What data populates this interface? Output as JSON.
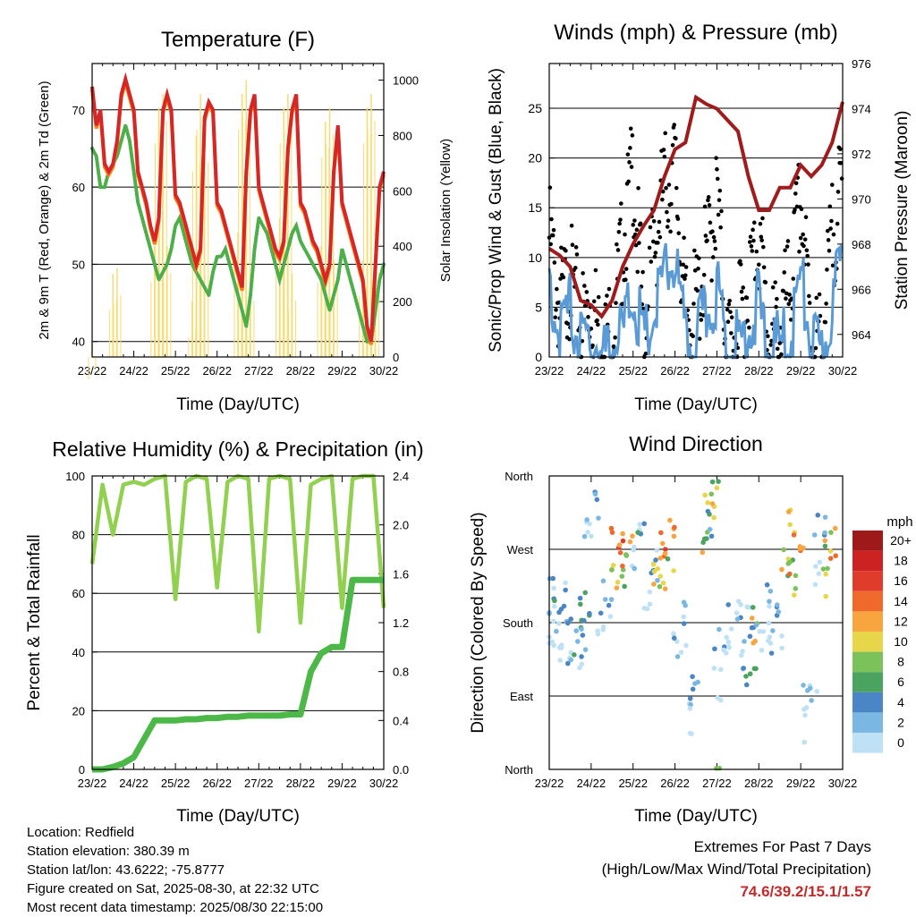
{
  "panels": {
    "temperature": {
      "title": "Temperature (F)",
      "ylabel": "2m & 9m T (Red, Orange) & 2m Td (Green)",
      "y2label": "Solar Insolation (Yellow)",
      "xlabel": "Time (Day/UTC)"
    },
    "winds": {
      "title": "Winds (mph) & Pressure (mb)",
      "ylabel": "Sonic/Prop Wind & Gust (Blue, Black)",
      "y2label": "Station Pressure (Maroon)",
      "xlabel": "Time (Day/UTC)"
    },
    "humidity": {
      "title": "Relative Humidity (%) & Precipitation (in)",
      "ylabel": "Percent & Total Rainfall",
      "xlabel": "Time (Day/UTC)"
    },
    "direction": {
      "title": "Wind Direction",
      "ylabel": "Direction (Colored By Speed)",
      "xlabel": "Time (Day/UTC)",
      "legend_title": "mph"
    }
  },
  "station": {
    "location": "Location: Redfield",
    "elevation": "Station elevation: 380.39 m",
    "latlon": "Station lat/lon: 43.6222; -75.8777",
    "created": "Figure created on Sat, 2025-08-30, at 22:32 UTC",
    "recent": "Most recent data timestamp: 2025/08/30 22:15:00"
  },
  "extremes": {
    "line1": "Extremes For Past 7 Days",
    "line2": "(High/Low/Max Wind/Total Precipitation)",
    "values": "74.6/39.2/15.1/1.57"
  },
  "colors": {
    "temp2m": "#d62728",
    "temp9m": "#ff7f0e",
    "dewpoint": "#4daf4a",
    "solar": "#f7dc6f",
    "wind": "#5b9bd5",
    "gust": "#000000",
    "pressure": "#a01c1c",
    "rh": "#92d050",
    "precip": "#4cb848"
  },
  "chart_data": [
    {
      "type": "line",
      "title": "Temperature (F)",
      "xlabel": "Time (Day/UTC)",
      "ylabel": "2m & 9m T (Red, Orange) & 2m Td (Green)",
      "y2label": "Solar Insolation (Yellow)",
      "xticks": [
        "23/22",
        "24/22",
        "25/22",
        "26/22",
        "27/22",
        "28/22",
        "29/22",
        "30/22"
      ],
      "ylim": [
        38,
        76
      ],
      "yticks": [
        40,
        50,
        60,
        70
      ],
      "y2lim": [
        0,
        1060
      ],
      "y2ticks": [
        0,
        200,
        400,
        600,
        800,
        1000
      ],
      "grid": true,
      "x": [
        0,
        0.1,
        0.2,
        0.3,
        0.4,
        0.5,
        0.6,
        0.7,
        0.8,
        0.9,
        1.0,
        1.1,
        1.2,
        1.3,
        1.4,
        1.5,
        1.6,
        1.7,
        1.8,
        1.9,
        2.0,
        2.1,
        2.2,
        2.3,
        2.4,
        2.5,
        2.6,
        2.7,
        2.8,
        2.9,
        3.0,
        3.1,
        3.2,
        3.3,
        3.4,
        3.5,
        3.6,
        3.7,
        3.8,
        3.9,
        4.0,
        4.1,
        4.2,
        4.3,
        4.4,
        4.5,
        4.6,
        4.7,
        4.8,
        4.9,
        5.0,
        5.1,
        5.2,
        5.3,
        5.4,
        5.5,
        5.6,
        5.7,
        5.8,
        5.9,
        6.0,
        6.1,
        6.2,
        6.3,
        6.4,
        6.5,
        6.6,
        6.7,
        6.8,
        6.9,
        7.0
      ],
      "series": [
        {
          "name": "2m T",
          "values": [
            73,
            68,
            70,
            63,
            62,
            63,
            66,
            72,
            74,
            72,
            70,
            62,
            60,
            58,
            55,
            53,
            56,
            70,
            72,
            70,
            59,
            58,
            56,
            54,
            52,
            50,
            52,
            69,
            71,
            70,
            58,
            57,
            55,
            53,
            51,
            49,
            47,
            62,
            70,
            72,
            60,
            58,
            56,
            54,
            52,
            51,
            53,
            65,
            70,
            72,
            58,
            57,
            55,
            53,
            52,
            50,
            48,
            50,
            62,
            68,
            58,
            56,
            54,
            52,
            50,
            48,
            42,
            40,
            50,
            60,
            62
          ]
        },
        {
          "name": "2m Td",
          "values": [
            65,
            64,
            60,
            60,
            62,
            63,
            64,
            66,
            68,
            66,
            62,
            58,
            56,
            54,
            52,
            50,
            48,
            49,
            50,
            52,
            55,
            56,
            54,
            52,
            50,
            49,
            48,
            47,
            46,
            49,
            51,
            51,
            52,
            50,
            48,
            46,
            44,
            42,
            46,
            52,
            56,
            55,
            54,
            52,
            50,
            48,
            50,
            52,
            54,
            55,
            53,
            52,
            51,
            50,
            49,
            48,
            46,
            44,
            46,
            48,
            52,
            50,
            48,
            46,
            44,
            42,
            40,
            40,
            44,
            48,
            50
          ]
        },
        {
          "name": "Solar Insolation",
          "values": [
            50,
            0,
            0,
            0,
            0,
            300,
            320,
            0,
            0,
            0,
            0,
            0,
            0,
            0,
            0,
            400,
            900,
            950,
            400,
            0,
            0,
            0,
            0,
            0,
            200,
            800,
            950,
            800,
            0,
            0,
            0,
            0,
            0,
            0,
            0,
            450,
            950,
            1000,
            300,
            0,
            0,
            0,
            0,
            0,
            0,
            500,
            900,
            950,
            300,
            0,
            0,
            0,
            0,
            0,
            0,
            400,
            850,
            900,
            350,
            0,
            0,
            0,
            0,
            0,
            0,
            350,
            900,
            950,
            400,
            0,
            0
          ]
        }
      ]
    },
    {
      "type": "line",
      "title": "Winds (mph) & Pressure (mb)",
      "xlabel": "Time (Day/UTC)",
      "ylabel": "Sonic/Prop Wind & Gust (Blue, Black)",
      "y2label": "Station Pressure (Maroon)",
      "xticks": [
        "23/22",
        "24/22",
        "25/22",
        "26/22",
        "27/22",
        "28/22",
        "29/22",
        "30/22"
      ],
      "ylim": [
        0,
        29.5
      ],
      "yticks": [
        0,
        5,
        10,
        15,
        20,
        25
      ],
      "y2lim": [
        963,
        976
      ],
      "y2ticks": [
        964,
        966,
        968,
        970,
        972,
        974,
        976
      ],
      "grid": true,
      "x": [
        0,
        0.25,
        0.5,
        0.75,
        1.0,
        1.25,
        1.5,
        1.75,
        2.0,
        2.25,
        2.5,
        2.75,
        3.0,
        3.25,
        3.5,
        3.75,
        4.0,
        4.25,
        4.5,
        4.75,
        5.0,
        5.25,
        5.5,
        5.75,
        6.0,
        6.25,
        6.5,
        6.75,
        7.0
      ],
      "series": [
        {
          "name": "Wind",
          "values": [
            10,
            4,
            7,
            3,
            4,
            2,
            3,
            4,
            9,
            3,
            6,
            10,
            12,
            3,
            4,
            6,
            9,
            2,
            3,
            5,
            7,
            2,
            3,
            4,
            10,
            3,
            2,
            7,
            12
          ]
        },
        {
          "name": "Gust",
          "values": [
            15,
            8,
            11,
            6,
            9,
            4,
            6,
            14,
            22,
            6,
            14,
            20,
            22,
            7,
            8,
            13,
            19,
            4,
            6,
            10,
            16,
            4,
            6,
            10,
            19,
            5,
            4,
            15,
            20
          ]
        },
        {
          "name": "Pressure",
          "values": [
            967.8,
            967.5,
            967.0,
            965.5,
            965.3,
            964.8,
            965.5,
            967.0,
            968.0,
            968.8,
            969.5,
            971.0,
            972.2,
            972.5,
            974.5,
            974.2,
            974.0,
            973.5,
            973.0,
            971.0,
            969.5,
            969.5,
            970.5,
            970.5,
            971.5,
            971.0,
            971.5,
            972.5,
            974.3
          ]
        }
      ]
    },
    {
      "type": "line",
      "title": "Relative Humidity (%) & Precipitation (in)",
      "xlabel": "Time (Day/UTC)",
      "ylabel": "Percent & Total Rainfall",
      "xticks": [
        "23/22",
        "24/22",
        "25/22",
        "26/22",
        "27/22",
        "28/22",
        "29/22",
        "30/22"
      ],
      "ylim": [
        0,
        100
      ],
      "yticks": [
        0,
        20,
        40,
        60,
        80,
        100
      ],
      "y2lim": [
        0,
        2.4
      ],
      "y2ticks": [
        0.0,
        0.4,
        0.8,
        1.2,
        1.6,
        2.0,
        2.4
      ],
      "grid": true,
      "x": [
        0,
        0.25,
        0.5,
        0.75,
        1.0,
        1.25,
        1.5,
        1.75,
        2.0,
        2.25,
        2.5,
        2.75,
        3.0,
        3.25,
        3.5,
        3.75,
        4.0,
        4.25,
        4.5,
        4.75,
        5.0,
        5.25,
        5.5,
        5.75,
        6.0,
        6.25,
        6.5,
        6.75,
        7.0
      ],
      "series": [
        {
          "name": "Relative Humidity",
          "values": [
            70,
            97,
            80,
            97,
            98,
            97,
            99,
            100,
            58,
            98,
            100,
            99,
            62,
            98,
            100,
            99,
            47,
            99,
            100,
            99,
            50,
            97,
            99,
            100,
            55,
            99,
            100,
            100,
            55
          ]
        },
        {
          "name": "Total Precipitation",
          "values": [
            0,
            0,
            0.02,
            0.05,
            0.1,
            0.25,
            0.4,
            0.4,
            0.4,
            0.41,
            0.41,
            0.42,
            0.42,
            0.43,
            0.43,
            0.44,
            0.44,
            0.44,
            0.44,
            0.45,
            0.45,
            0.8,
            0.95,
            1.0,
            1.0,
            1.55,
            1.55,
            1.55,
            1.55
          ]
        }
      ]
    },
    {
      "type": "scatter",
      "title": "Wind Direction",
      "xlabel": "Time (Day/UTC)",
      "ylabel": "Direction (Colored By Speed)",
      "xticks": [
        "23/22",
        "24/22",
        "25/22",
        "26/22",
        "27/22",
        "28/22",
        "29/22",
        "30/22"
      ],
      "ylim": [
        0,
        360
      ],
      "ytick_labels": [
        "North",
        "East",
        "South",
        "West",
        "North"
      ],
      "colorbar": {
        "title": "mph",
        "labels": [
          "20+",
          "18",
          "16",
          "14",
          "12",
          "10",
          "8",
          "6",
          "4",
          "2",
          "0"
        ],
        "colors": [
          "#9e1a1a",
          "#cc2222",
          "#e03c2c",
          "#f0692c",
          "#f9a53f",
          "#e7d54a",
          "#7cc25a",
          "#4aa35f",
          "#4a86c5",
          "#7ab8e3",
          "#bfe1f6"
        ]
      },
      "x": [
        0.1,
        0.3,
        0.5,
        0.7,
        0.9,
        1.1,
        1.4,
        1.7,
        1.9,
        2.2,
        2.5,
        2.7,
        2.9,
        3.2,
        3.5,
        3.9,
        4.0,
        4.2,
        4.5,
        4.8,
        4.9,
        5.2,
        5.5,
        5.8,
        6.0,
        6.3,
        6.6,
        6.8
      ],
      "series": [
        {
          "name": "Direction",
          "values": [
            215,
            210,
            200,
            190,
            205,
            330,
            210,
            285,
            270,
            300,
            250,
            275,
            290,
            200,
            110,
            320,
            340,
            150,
            200,
            180,
            170,
            210,
            200,
            300,
            280,
            100,
            290,
            275
          ]
        },
        {
          "name": "Speed",
          "values": [
            4,
            4,
            3,
            5,
            4,
            3,
            2,
            14,
            12,
            4,
            3,
            14,
            12,
            2,
            3,
            10,
            8,
            2,
            2,
            4,
            10,
            2,
            2,
            10,
            12,
            1,
            4,
            13
          ]
        }
      ]
    }
  ]
}
